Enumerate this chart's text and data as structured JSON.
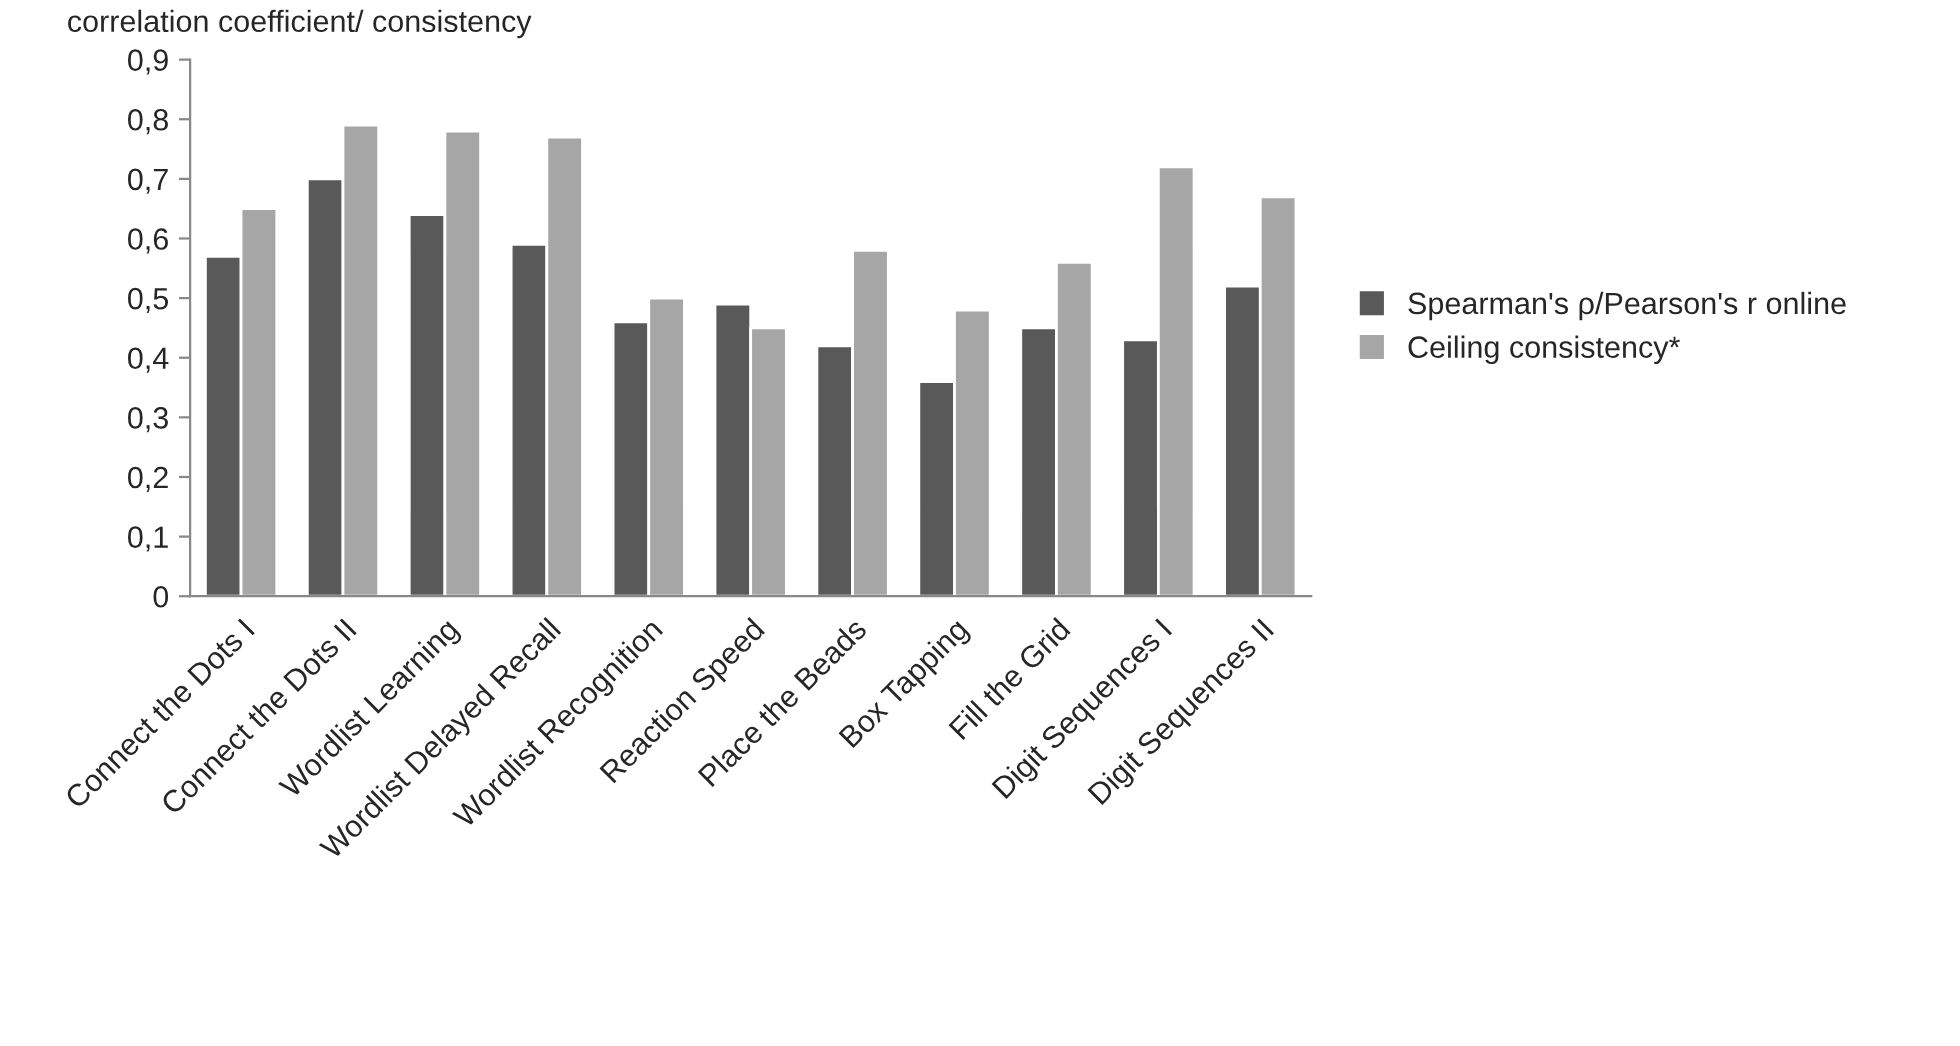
{
  "chart_data": {
    "type": "bar",
    "ylabel": "correlation coefficient/ consistency",
    "categories": [
      "Connect the Dots I",
      "Connect the Dots II",
      "Wordlist Learning",
      "Wordlist Delayed Recall",
      "Wordlist Recognition",
      "Reaction Speed",
      "Place the Beads",
      "Box Tapping",
      "Fill the Grid",
      "Digit Sequences I",
      "Digit Sequences II"
    ],
    "series": [
      {
        "name": "Spearman's ρ/Pearson's r online",
        "color": "#595959",
        "values": [
          0.57,
          0.7,
          0.64,
          0.59,
          0.46,
          0.49,
          0.42,
          0.36,
          0.45,
          0.43,
          0.52
        ]
      },
      {
        "name": "Ceiling consistency*",
        "color": "#a6a6a6",
        "values": [
          0.65,
          0.79,
          0.78,
          0.77,
          0.5,
          0.45,
          0.58,
          0.48,
          0.56,
          0.72,
          0.67
        ]
      }
    ],
    "ylim": [
      0,
      0.9
    ],
    "yticks": [
      {
        "value": 0,
        "label": "0"
      },
      {
        "value": 0.1,
        "label": "0,1"
      },
      {
        "value": 0.2,
        "label": "0,2"
      },
      {
        "value": 0.3,
        "label": "0,3"
      },
      {
        "value": 0.4,
        "label": "0,4"
      },
      {
        "value": 0.5,
        "label": "0,5"
      },
      {
        "value": 0.6,
        "label": "0,6"
      },
      {
        "value": 0.7,
        "label": "0,7"
      },
      {
        "value": 0.8,
        "label": "0,8"
      },
      {
        "value": 0.9,
        "label": "0,9"
      }
    ],
    "grid": false,
    "legend": "right"
  }
}
